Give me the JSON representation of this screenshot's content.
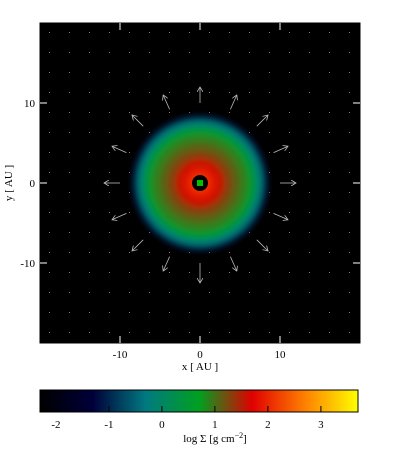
{
  "chart_data": {
    "type": "density-map",
    "x_label": "x [ AU ]",
    "y_label": "y [ AU ]",
    "xlim": [
      -20,
      20
    ],
    "ylim": [
      -20,
      20
    ],
    "xticks": [
      -10,
      0,
      10
    ],
    "yticks": [
      -10,
      0,
      10
    ],
    "profile": {
      "r": [
        1,
        2,
        3,
        4,
        5,
        6,
        7,
        7.8,
        8.5
      ],
      "values": [
        2.2,
        1.9,
        1.6,
        1.3,
        1.1,
        0.9,
        0.5,
        -0.2,
        -1.0
      ]
    },
    "vectors": {
      "x": [
        10,
        9.2,
        7.1,
        3.8,
        0,
        -3.8,
        -7.1,
        -9.2,
        -10,
        -9.2,
        -7.1,
        -3.8,
        0,
        3.8,
        7.1,
        9.2
      ],
      "y": [
        0,
        3.8,
        7.1,
        9.2,
        10,
        9.2,
        7.1,
        3.8,
        0,
        -3.8,
        -7.1,
        -9.2,
        -10,
        -9.2,
        -7.1,
        -3.8
      ],
      "u": [
        2,
        1.8,
        1.4,
        0.8,
        0,
        -0.8,
        -1.4,
        -1.8,
        -2,
        -1.8,
        -1.4,
        -0.8,
        0,
        0.8,
        1.4,
        1.8
      ],
      "v": [
        0,
        0.8,
        1.4,
        1.8,
        2,
        1.8,
        1.4,
        0.8,
        0,
        -0.8,
        -1.4,
        -1.8,
        -2.5,
        -1.8,
        -1.4,
        -0.8
      ]
    },
    "colorbar_label": "log Σ [g cm",
    "colorbar_label_sup": "−2",
    "colorbar_label_end": "]",
    "clim": [
      -2.3,
      3.7
    ],
    "cticks": [
      -2,
      -1,
      0,
      1,
      2,
      3
    ],
    "colormap": [
      "#000000",
      "#00003a",
      "#007a80",
      "#00a020",
      "#e00000",
      "#ff8000",
      "#ffff00"
    ]
  }
}
